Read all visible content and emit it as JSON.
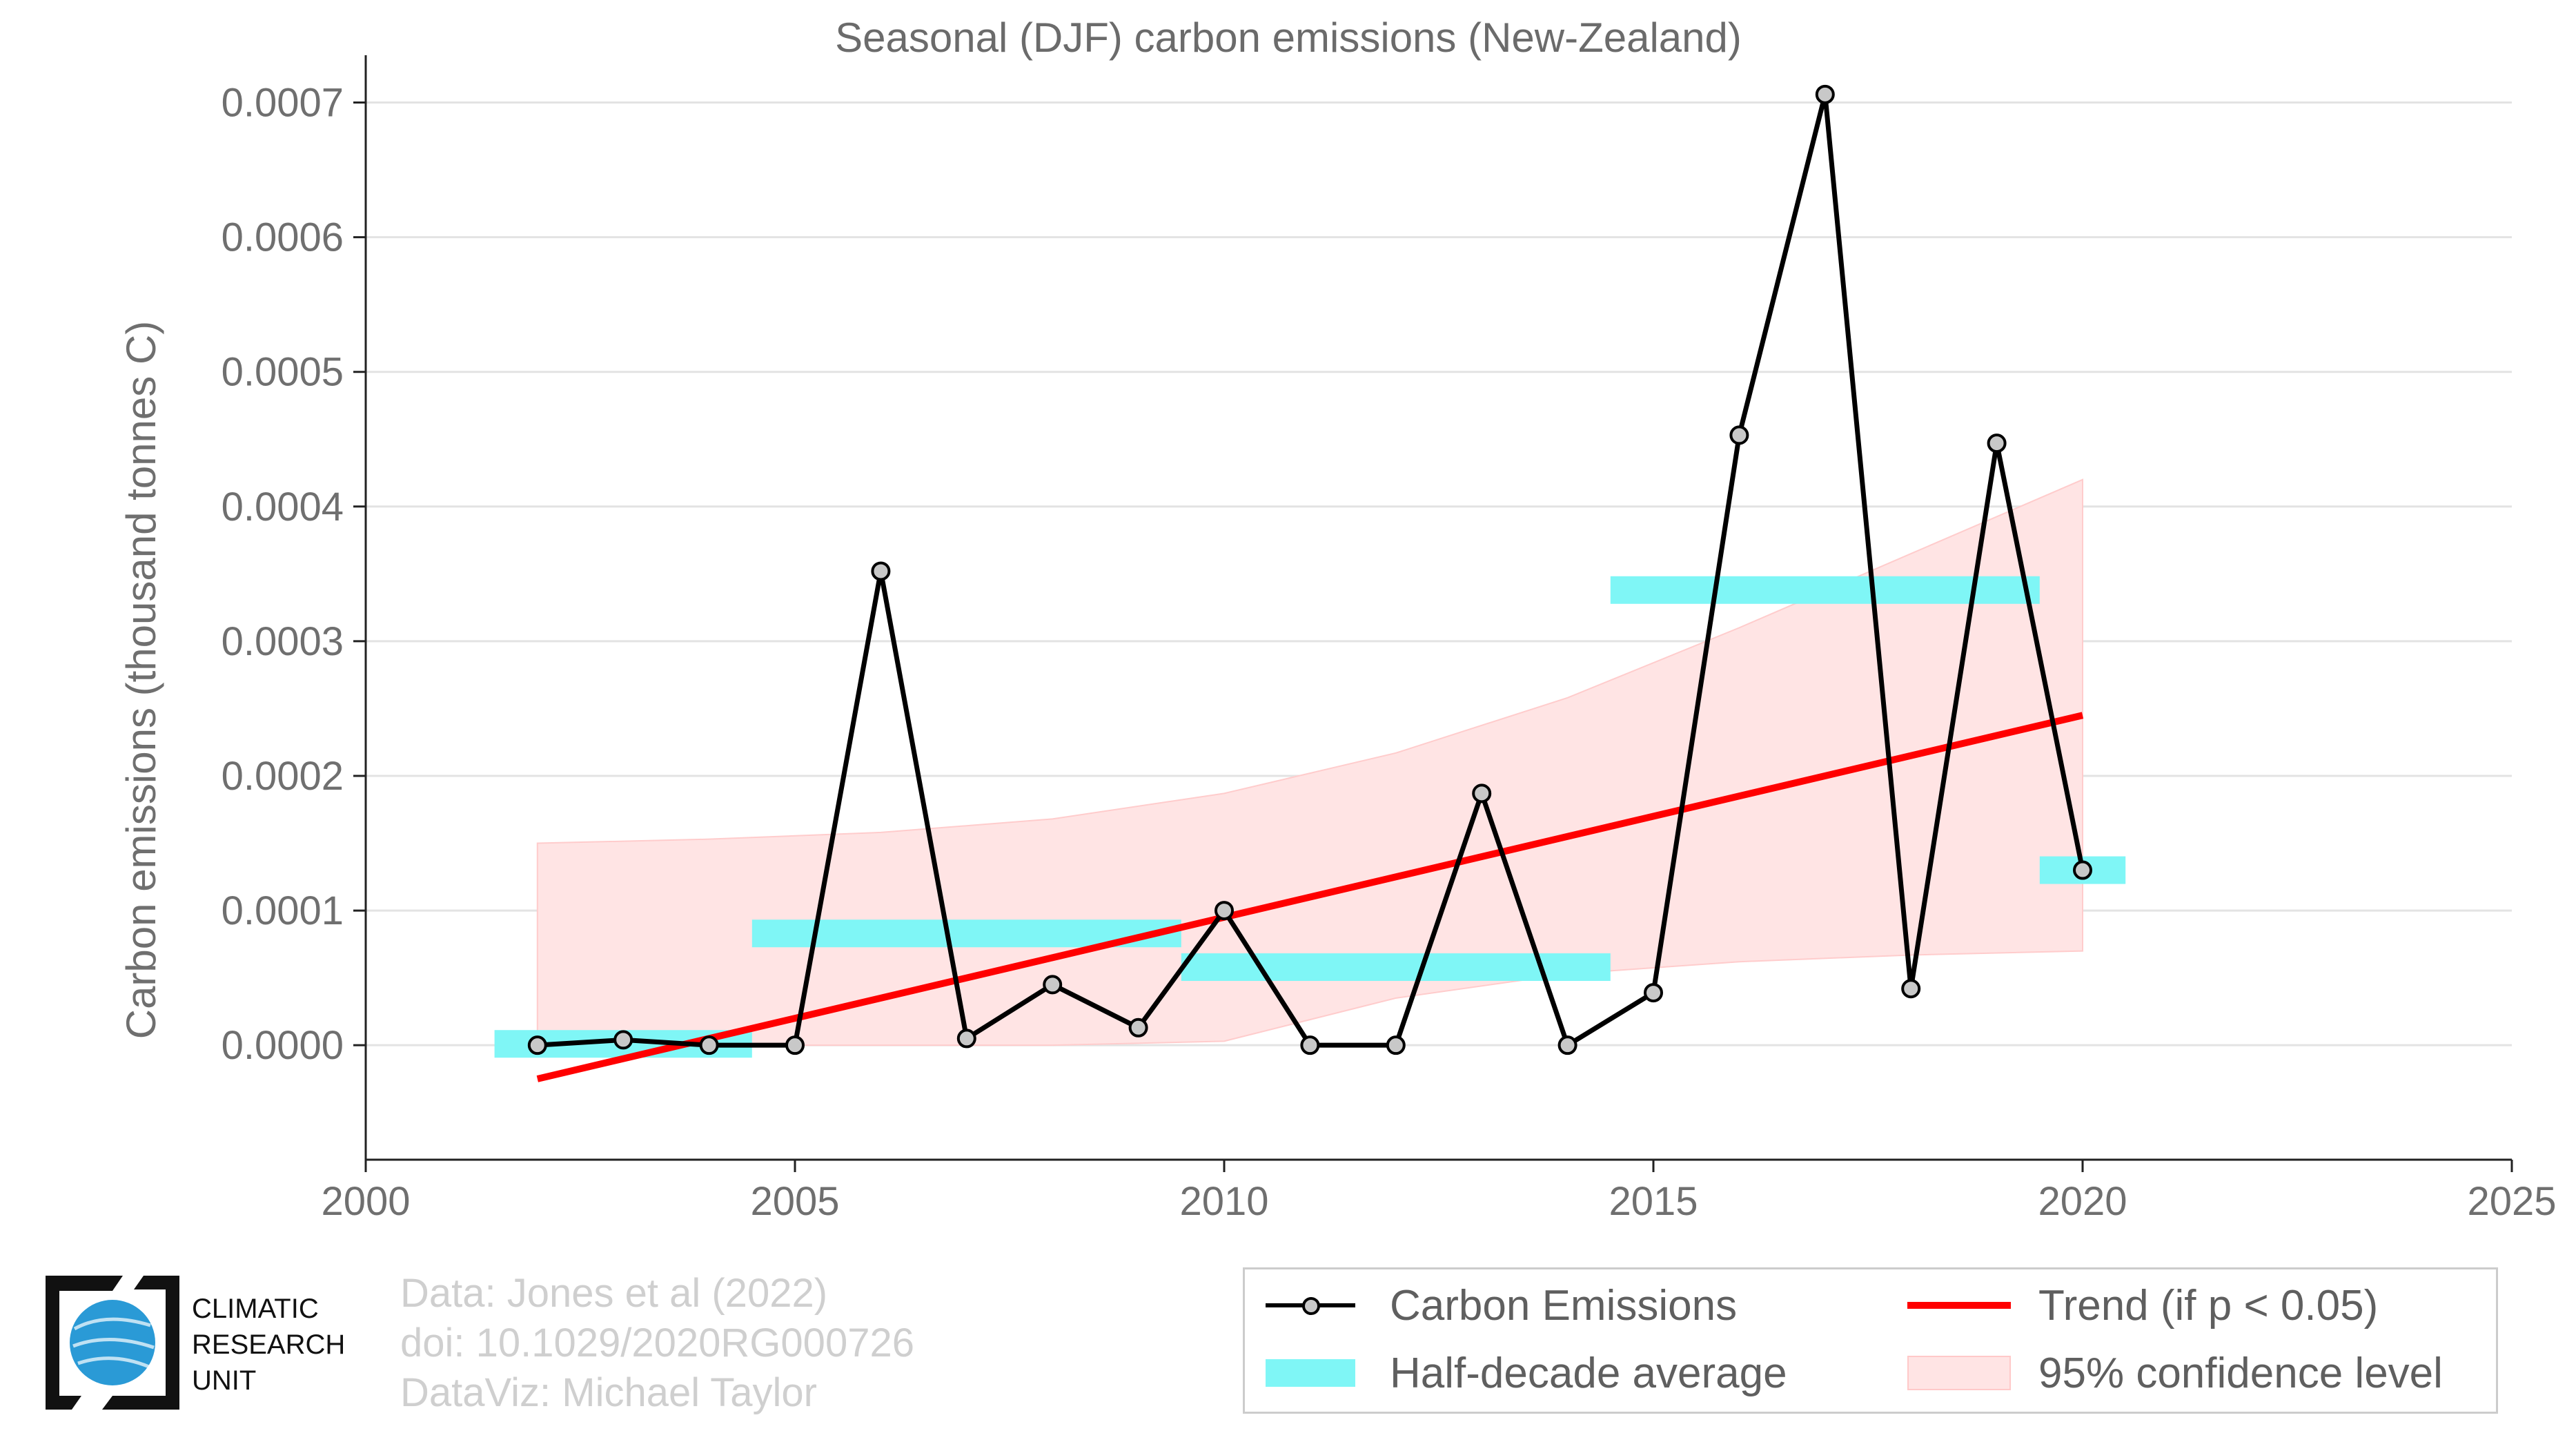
{
  "chart_data": {
    "type": "line",
    "title": "Seasonal (DJF) carbon emissions (New-Zealand)",
    "ylabel": "Carbon emissions (thousand tonnes C)",
    "xlabel": "",
    "xlim": [
      2000,
      2025
    ],
    "ylim": [
      -8.5e-05,
      0.00073
    ],
    "x_ticks": [
      2000,
      2005,
      2010,
      2015,
      2020,
      2025
    ],
    "x_tick_labels": [
      "2000",
      "2005",
      "2010",
      "2015",
      "2020",
      "2025"
    ],
    "y_ticks": [
      0,
      0.0001,
      0.0002,
      0.0003,
      0.0004,
      0.0005,
      0.0006,
      0.0007
    ],
    "y_tick_labels": [
      "0.0000",
      "0.0001",
      "0.0002",
      "0.0003",
      "0.0004",
      "0.0005",
      "0.0006",
      "0.0007"
    ],
    "grid": "horizontal",
    "legend_position": "bottom-right",
    "series": [
      {
        "name": "Carbon Emissions",
        "color": "#000000",
        "x": [
          2002,
          2003,
          2004,
          2005,
          2006,
          2007,
          2008,
          2009,
          2010,
          2011,
          2012,
          2013,
          2014,
          2015,
          2016,
          2017,
          2018,
          2019,
          2020
        ],
        "y": [
          0.0,
          4e-06,
          0.0,
          0.0,
          0.000352,
          5e-06,
          4.5e-05,
          1.3e-05,
          0.0001,
          0.0,
          0.0,
          0.000187,
          0.0,
          3.9e-05,
          0.000453,
          0.000706,
          4.2e-05,
          0.000447,
          0.00013
        ]
      },
      {
        "name": "Half-decade average",
        "color": "#7ff6f6",
        "segments": [
          {
            "x0": 2001.5,
            "x1": 2004.5,
            "y": 1e-06
          },
          {
            "x0": 2004.5,
            "x1": 2009.5,
            "y": 8.3e-05
          },
          {
            "x0": 2009.5,
            "x1": 2014.5,
            "y": 5.8e-05
          },
          {
            "x0": 2014.5,
            "x1": 2019.5,
            "y": 0.000338
          },
          {
            "x0": 2019.5,
            "x1": 2020.5,
            "y": 0.00013
          }
        ]
      },
      {
        "name": "Trend (if p < 0.05)",
        "color": "#ff0000",
        "x": [
          2002,
          2020
        ],
        "y": [
          -2.5e-05,
          0.000245
        ]
      },
      {
        "name": "95% confidence level",
        "color": "#ffe4e4",
        "x": [
          2002,
          2004,
          2006,
          2008,
          2010,
          2012,
          2014,
          2016,
          2018,
          2020
        ],
        "upper": [
          0.00015,
          0.000153,
          0.000158,
          0.000168,
          0.000187,
          0.000217,
          0.000258,
          0.00031,
          0.000365,
          0.00042
        ],
        "lower": [
          0.0,
          0.0,
          0.0,
          0.0,
          3e-06,
          3.5e-05,
          5.3e-05,
          6.2e-05,
          6.7e-05,
          7e-05
        ]
      }
    ]
  },
  "credits": {
    "line1": "Data: Jones et al (2022)",
    "line2": "doi: 10.1029/2020RG000726",
    "line3": "DataViz: Michael Taylor"
  },
  "logo": {
    "line1": "CLIMATIC",
    "line2": "RESEARCH",
    "line3": "UNIT",
    "globe_color": "#2a9ad6"
  }
}
